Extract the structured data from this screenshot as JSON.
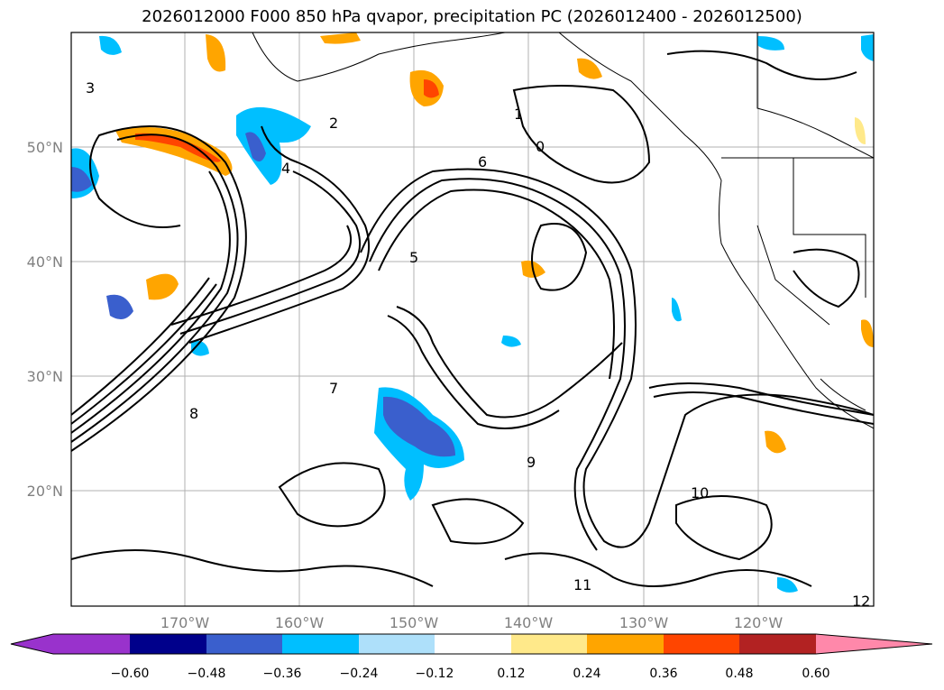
{
  "title": "2026012000 F000 850 hPa qvapor, precipitation PC (2026012400 - 2026012500)",
  "map": {
    "lat_labels": [
      "50°N",
      "40°N",
      "30°N",
      "20°N"
    ],
    "lon_labels": [
      "170°W",
      "160°W",
      "150°W",
      "140°W",
      "130°W",
      "120°W"
    ],
    "contour_labels": [
      "3",
      "2",
      "4",
      "6",
      "1",
      "0",
      "5",
      "7",
      "8",
      "9",
      "10",
      "11",
      "12"
    ],
    "grid": true,
    "colors": {
      "coastline": "#000000",
      "grid": "#b0b0b0"
    }
  },
  "colorbar": {
    "ticks": [
      "−0.60",
      "−0.48",
      "−0.36",
      "−0.24",
      "−0.12",
      "0.12",
      "0.24",
      "0.36",
      "0.48",
      "0.60"
    ],
    "colors": [
      "#9932cc",
      "#00008b",
      "#3a5fcd",
      "#00bfff",
      "#aee0fa",
      "#ffffff",
      "#ffe98a",
      "#ffa500",
      "#ff4500",
      "#b22222",
      "#ff88aa"
    ]
  }
}
